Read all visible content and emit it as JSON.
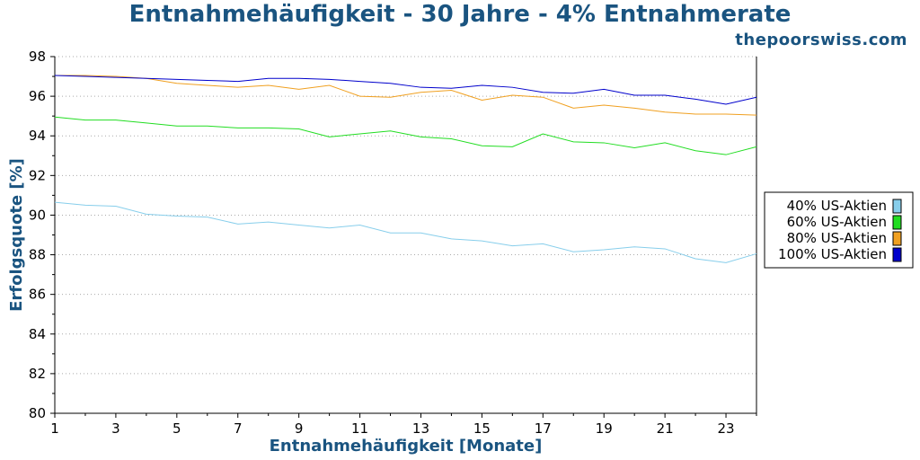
{
  "chart_data": {
    "type": "line",
    "title": "Entnahmehäufigkeit - 30 Jahre - 4% Entnahmerate",
    "source": "thepoorswiss.com",
    "xlabel": "Entnahmehäufigkeit [Monate]",
    "ylabel": "Erfolgsquote [%]",
    "xlim": [
      1,
      24
    ],
    "ylim": [
      80,
      98
    ],
    "xticks": [
      1,
      3,
      5,
      7,
      9,
      11,
      13,
      15,
      17,
      19,
      21,
      23
    ],
    "yticks": [
      80,
      82,
      84,
      86,
      88,
      90,
      92,
      94,
      96,
      98
    ],
    "grid": "horizontal dotted",
    "legend_position": "right",
    "x": [
      1,
      2,
      3,
      4,
      5,
      6,
      7,
      8,
      9,
      10,
      11,
      12,
      13,
      14,
      15,
      16,
      17,
      18,
      19,
      20,
      21,
      22,
      23,
      24
    ],
    "series": [
      {
        "name": "40% US-Aktien",
        "color": "#87ceeb",
        "values": [
          90.65,
          90.5,
          90.45,
          90.05,
          89.95,
          89.9,
          89.55,
          89.65,
          89.5,
          89.35,
          89.5,
          89.1,
          89.1,
          88.8,
          88.7,
          88.45,
          88.55,
          88.15,
          88.25,
          88.4,
          88.3,
          87.8,
          87.6,
          88.05
        ]
      },
      {
        "name": "60% US-Aktien",
        "color": "#22dd22",
        "values": [
          94.95,
          94.8,
          94.8,
          94.65,
          94.5,
          94.5,
          94.4,
          94.4,
          94.35,
          93.95,
          94.1,
          94.25,
          93.95,
          93.85,
          93.5,
          93.45,
          94.1,
          93.7,
          93.65,
          93.4,
          93.65,
          93.25,
          93.05,
          93.45
        ]
      },
      {
        "name": "80% US-Aktien",
        "color": "#f0a020",
        "values": [
          97.05,
          97.05,
          97.0,
          96.9,
          96.65,
          96.55,
          96.45,
          96.55,
          96.35,
          96.55,
          96.0,
          95.95,
          96.2,
          96.3,
          95.8,
          96.05,
          95.95,
          95.4,
          95.55,
          95.4,
          95.2,
          95.1,
          95.1,
          95.05
        ]
      },
      {
        "name": "100% US-Aktien",
        "color": "#0000cc",
        "values": [
          97.05,
          97.0,
          96.95,
          96.9,
          96.85,
          96.8,
          96.75,
          96.9,
          96.9,
          96.85,
          96.75,
          96.65,
          96.45,
          96.4,
          96.55,
          96.45,
          96.2,
          96.15,
          96.35,
          96.05,
          96.05,
          95.85,
          95.6,
          95.95
        ]
      }
    ]
  }
}
